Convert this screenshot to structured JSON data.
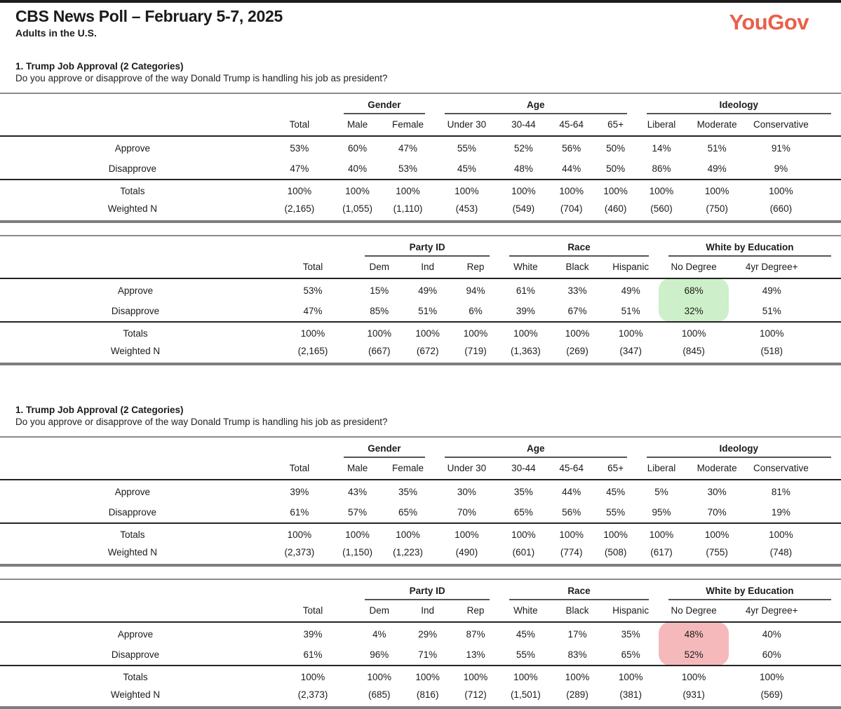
{
  "page": {
    "title": "CBS News Poll – February 5-7, 2025",
    "subtitle": "Adults in the U.S.",
    "logo_text": "YouGov",
    "logo_color": "#EA5F48",
    "highlight_colors": {
      "green": "#cdefc9",
      "pink": "#f6b9bb"
    }
  },
  "sections": [
    {
      "heading": "1. Trump Job Approval (2 Categories)",
      "question": "Do you approve or disapprove of the way Donald Trump is handling his job as president?",
      "tables": [
        {
          "groups": [
            {
              "label": "",
              "cols": [
                "Total"
              ]
            },
            {
              "label": "Gender",
              "cols": [
                "Male",
                "Female"
              ]
            },
            {
              "label": "Age",
              "cols": [
                "Under 30",
                "30-44",
                "45-64",
                "65+"
              ]
            },
            {
              "label": "Ideology",
              "cols": [
                "Liberal",
                "Moderate",
                "Conservative"
              ]
            }
          ],
          "rows": [
            {
              "label": "Approve",
              "values": [
                "53%",
                "60%",
                "47%",
                "55%",
                "52%",
                "56%",
                "50%",
                "14%",
                "51%",
                "91%"
              ]
            },
            {
              "label": "Disapprove",
              "values": [
                "47%",
                "40%",
                "53%",
                "45%",
                "48%",
                "44%",
                "50%",
                "86%",
                "49%",
                "9%"
              ]
            }
          ],
          "totals_rows": [
            {
              "label": "Totals",
              "values": [
                "100%",
                "100%",
                "100%",
                "100%",
                "100%",
                "100%",
                "100%",
                "100%",
                "100%",
                "100%"
              ]
            },
            {
              "label": "Weighted N",
              "values": [
                "(2,165)",
                "(1,055)",
                "(1,110)",
                "(453)",
                "(549)",
                "(704)",
                "(460)",
                "(560)",
                "(750)",
                "(660)"
              ]
            }
          ],
          "highlight": null
        },
        {
          "groups": [
            {
              "label": "",
              "cols": [
                "Total"
              ]
            },
            {
              "label": "Party ID",
              "cols": [
                "Dem",
                "Ind",
                "Rep"
              ]
            },
            {
              "label": "Race",
              "cols": [
                "White",
                "Black",
                "Hispanic"
              ]
            },
            {
              "label": "White by Education",
              "cols": [
                "No Degree",
                "4yr Degree+"
              ]
            }
          ],
          "rows": [
            {
              "label": "Approve",
              "values": [
                "53%",
                "15%",
                "49%",
                "94%",
                "61%",
                "33%",
                "49%",
                "68%",
                "49%"
              ]
            },
            {
              "label": "Disapprove",
              "values": [
                "47%",
                "85%",
                "51%",
                "6%",
                "39%",
                "67%",
                "51%",
                "32%",
                "51%"
              ]
            }
          ],
          "totals_rows": [
            {
              "label": "Totals",
              "values": [
                "100%",
                "100%",
                "100%",
                "100%",
                "100%",
                "100%",
                "100%",
                "100%",
                "100%"
              ]
            },
            {
              "label": "Weighted N",
              "values": [
                "(2,165)",
                "(667)",
                "(672)",
                "(719)",
                "(1,363)",
                "(269)",
                "(347)",
                "(845)",
                "(518)"
              ]
            }
          ],
          "highlight": {
            "col": 7,
            "rows": [
              0,
              1
            ],
            "color": "green"
          }
        }
      ]
    },
    {
      "heading": "1. Trump Job Approval (2 Categories)",
      "question": "Do you approve or disapprove of the way Donald Trump is handling his job as president?",
      "tables": [
        {
          "groups": [
            {
              "label": "",
              "cols": [
                "Total"
              ]
            },
            {
              "label": "Gender",
              "cols": [
                "Male",
                "Female"
              ]
            },
            {
              "label": "Age",
              "cols": [
                "Under 30",
                "30-44",
                "45-64",
                "65+"
              ]
            },
            {
              "label": "Ideology",
              "cols": [
                "Liberal",
                "Moderate",
                "Conservative"
              ]
            }
          ],
          "rows": [
            {
              "label": "Approve",
              "values": [
                "39%",
                "43%",
                "35%",
                "30%",
                "35%",
                "44%",
                "45%",
                "5%",
                "30%",
                "81%"
              ]
            },
            {
              "label": "Disapprove",
              "values": [
                "61%",
                "57%",
                "65%",
                "70%",
                "65%",
                "56%",
                "55%",
                "95%",
                "70%",
                "19%"
              ]
            }
          ],
          "totals_rows": [
            {
              "label": "Totals",
              "values": [
                "100%",
                "100%",
                "100%",
                "100%",
                "100%",
                "100%",
                "100%",
                "100%",
                "100%",
                "100%"
              ]
            },
            {
              "label": "Weighted N",
              "values": [
                "(2,373)",
                "(1,150)",
                "(1,223)",
                "(490)",
                "(601)",
                "(774)",
                "(508)",
                "(617)",
                "(755)",
                "(748)"
              ]
            }
          ],
          "highlight": null
        },
        {
          "groups": [
            {
              "label": "",
              "cols": [
                "Total"
              ]
            },
            {
              "label": "Party ID",
              "cols": [
                "Dem",
                "Ind",
                "Rep"
              ]
            },
            {
              "label": "Race",
              "cols": [
                "White",
                "Black",
                "Hispanic"
              ]
            },
            {
              "label": "White by Education",
              "cols": [
                "No Degree",
                "4yr Degree+"
              ]
            }
          ],
          "rows": [
            {
              "label": "Approve",
              "values": [
                "39%",
                "4%",
                "29%",
                "87%",
                "45%",
                "17%",
                "35%",
                "48%",
                "40%"
              ]
            },
            {
              "label": "Disapprove",
              "values": [
                "61%",
                "96%",
                "71%",
                "13%",
                "55%",
                "83%",
                "65%",
                "52%",
                "60%"
              ]
            }
          ],
          "totals_rows": [
            {
              "label": "Totals",
              "values": [
                "100%",
                "100%",
                "100%",
                "100%",
                "100%",
                "100%",
                "100%",
                "100%",
                "100%"
              ]
            },
            {
              "label": "Weighted N",
              "values": [
                "(2,373)",
                "(685)",
                "(816)",
                "(712)",
                "(1,501)",
                "(289)",
                "(381)",
                "(931)",
                "(569)"
              ]
            }
          ],
          "highlight": {
            "col": 7,
            "rows": [
              0,
              1
            ],
            "color": "pink"
          }
        }
      ]
    }
  ]
}
